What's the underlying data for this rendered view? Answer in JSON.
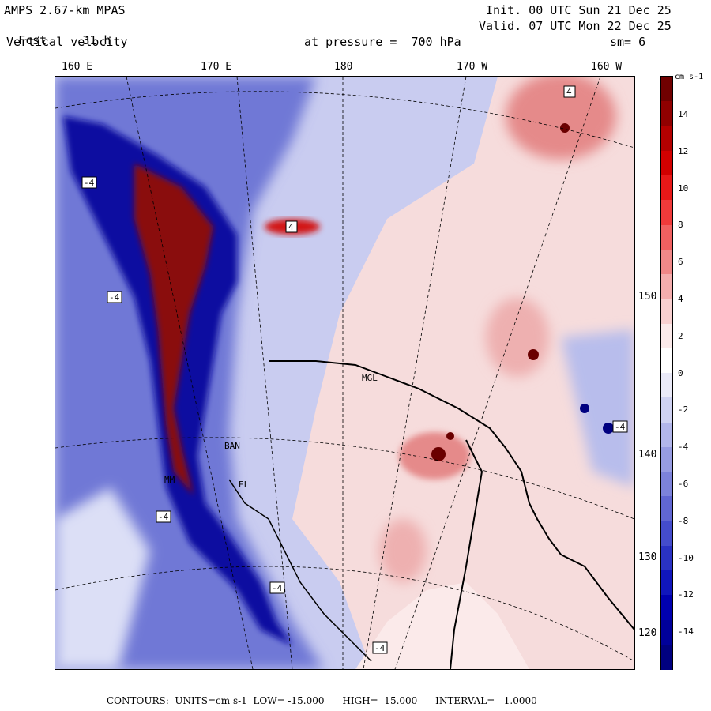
{
  "header": {
    "model": "AMPS 2.67-km MPAS",
    "forecast_label": "Fcst.",
    "forecast_hours": "31 h",
    "field": "Vertical velocity",
    "level": "at pressure =  700 hPa",
    "init": "Init. 00 UTC Sun 21 Dec 25",
    "valid": "Valid. 07 UTC Mon 22 Dec 25",
    "smoothing": "sm= 6"
  },
  "map": {
    "longitude_labels": [
      "160 E",
      "170 E",
      "180",
      "170 W",
      "160 W"
    ],
    "latitude_labels": [
      "150 W",
      "140 W",
      "130 W",
      "120 W"
    ],
    "station_labels": [
      "MGL",
      "BAN",
      "MM",
      "EL"
    ],
    "contour_labels": [
      "-4",
      "4"
    ],
    "colors": {
      "strong_negative": "#1010a0",
      "negative": "#6f78d6",
      "weak_negative": "#c9ccf0",
      "weak_positive": "#f6dcdc",
      "positive": "#e58a8a",
      "strong_positive": "#8a0a0a"
    }
  },
  "colorbar": {
    "units": "cm s-1",
    "tick_labels": [
      "14",
      "12",
      "10",
      "8",
      "6",
      "4",
      "2",
      "0",
      "-2",
      "-4",
      "-6",
      "-8",
      "-10",
      "-12",
      "-14"
    ],
    "colors": [
      "#700000",
      "#900000",
      "#b40000",
      "#d20000",
      "#e81818",
      "#f03a3a",
      "#f06060",
      "#f08888",
      "#f4adad",
      "#f8d0d0",
      "#fbeaea",
      "#ffffff",
      "#eaeaf8",
      "#cfd2f2",
      "#b2b6ea",
      "#979ce2",
      "#7c82da",
      "#6066d2",
      "#444ccc",
      "#2a32c4",
      "#1016bc",
      "#0000b0",
      "#00009a",
      "#000080"
    ]
  },
  "footer": {
    "text": "CONTOURS:  UNITS=cm s-1  LOW= -15.000      HIGH=  15.000      INTERVAL=   1.0000"
  }
}
